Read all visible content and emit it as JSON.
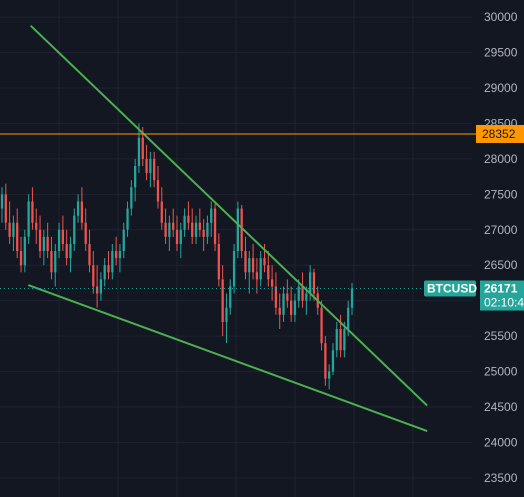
{
  "colors": {
    "background": "#131722",
    "grid": "#1f2330",
    "up": "#26a69a",
    "down": "#ef5350",
    "trendline": "#4caf50",
    "resistance": "#ff9800",
    "axis_text": "#b2b5be",
    "price_line": "#26a69a"
  },
  "chart_data": {
    "type": "candlestick",
    "symbol": "BTCUSD",
    "y_axis": {
      "ticks": [
        23500,
        24000,
        24500,
        25000,
        25500,
        26000,
        26500,
        27000,
        27500,
        28000,
        28500,
        29000,
        29500,
        30000
      ],
      "ylim": [
        23300,
        30200
      ],
      "side": "right"
    },
    "grid": true,
    "horizontal_level": {
      "price": 28352,
      "label": "28352",
      "color": "#ff9800"
    },
    "current_price": {
      "value": 26171,
      "symbol_label": "BTCUSD",
      "price_label": "26171",
      "countdown": "02:10:4"
    },
    "trendlines": [
      {
        "name": "descending-resistance",
        "start": [
          0.065,
          29880
        ],
        "end": [
          0.905,
          24520
        ]
      },
      {
        "name": "descending-support",
        "start": [
          0.06,
          26220
        ],
        "end": [
          0.905,
          24160
        ]
      }
    ],
    "candles": [
      [
        27300,
        27600,
        27100,
        27500
      ],
      [
        27500,
        27650,
        27000,
        27100
      ],
      [
        27100,
        27400,
        26800,
        26900
      ],
      [
        26900,
        27200,
        26700,
        27100
      ],
      [
        27100,
        27300,
        26600,
        26700
      ],
      [
        26700,
        26900,
        26400,
        26500
      ],
      [
        26500,
        27000,
        26400,
        26900
      ],
      [
        26900,
        27500,
        26800,
        27400
      ],
      [
        27400,
        27600,
        27000,
        27100
      ],
      [
        27100,
        27300,
        26800,
        27000
      ],
      [
        27000,
        27200,
        26600,
        26700
      ],
      [
        26700,
        27000,
        26500,
        26900
      ],
      [
        26900,
        27100,
        26600,
        26700
      ],
      [
        26700,
        26900,
        26300,
        26400
      ],
      [
        26400,
        26800,
        26200,
        26700
      ],
      [
        26700,
        27100,
        26600,
        27000
      ],
      [
        27000,
        27200,
        26700,
        26800
      ],
      [
        26800,
        27000,
        26500,
        26600
      ],
      [
        26600,
        26900,
        26400,
        26800
      ],
      [
        26800,
        27300,
        26700,
        27200
      ],
      [
        27200,
        27500,
        27100,
        27400
      ],
      [
        27400,
        27600,
        27000,
        27100
      ],
      [
        27100,
        27300,
        26700,
        26800
      ],
      [
        26800,
        27000,
        26400,
        26500
      ],
      [
        26500,
        26700,
        26100,
        26200
      ],
      [
        26200,
        26500,
        25900,
        26100
      ],
      [
        26100,
        26400,
        26000,
        26300
      ],
      [
        26300,
        26600,
        26200,
        26500
      ],
      [
        26500,
        26700,
        26300,
        26400
      ],
      [
        26400,
        26800,
        26300,
        26700
      ],
      [
        26700,
        26900,
        26500,
        26600
      ],
      [
        26600,
        26800,
        26400,
        26700
      ],
      [
        26700,
        27100,
        26600,
        27000
      ],
      [
        27000,
        27400,
        26900,
        27300
      ],
      [
        27300,
        27700,
        27200,
        27600
      ],
      [
        27600,
        28000,
        27400,
        27900
      ],
      [
        27900,
        28500,
        27800,
        28300
      ],
      [
        28300,
        28450,
        27900,
        28000
      ],
      [
        28000,
        28200,
        27700,
        27800
      ],
      [
        27800,
        28100,
        27600,
        28000
      ],
      [
        28000,
        28100,
        27600,
        27700
      ],
      [
        27700,
        27900,
        27300,
        27400
      ],
      [
        27400,
        27600,
        27000,
        27100
      ],
      [
        27100,
        27300,
        26800,
        26900
      ],
      [
        26900,
        27200,
        26700,
        27100
      ],
      [
        27100,
        27300,
        26900,
        27000
      ],
      [
        27000,
        27200,
        26700,
        26800
      ],
      [
        26800,
        27100,
        26600,
        27000
      ],
      [
        27000,
        27300,
        26900,
        27200
      ],
      [
        27200,
        27400,
        27000,
        27100
      ],
      [
        27100,
        27300,
        26800,
        26900
      ],
      [
        26900,
        27200,
        26800,
        27100
      ],
      [
        27100,
        27300,
        26900,
        27000
      ],
      [
        27000,
        27150,
        26700,
        26900
      ],
      [
        26900,
        27200,
        26800,
        27100
      ],
      [
        27100,
        27400,
        26900,
        27300
      ],
      [
        27300,
        27400,
        26700,
        26800
      ],
      [
        26800,
        26950,
        26200,
        26300
      ],
      [
        26300,
        26500,
        25500,
        25700
      ],
      [
        25700,
        26100,
        25400,
        25900
      ],
      [
        25900,
        26300,
        25800,
        26200
      ],
      [
        26200,
        26800,
        26100,
        26700
      ],
      [
        26700,
        27400,
        26600,
        27300
      ],
      [
        27300,
        27350,
        26600,
        26700
      ],
      [
        26700,
        26900,
        26300,
        26400
      ],
      [
        26400,
        26700,
        26100,
        26600
      ],
      [
        26600,
        26800,
        26300,
        26400
      ],
      [
        26400,
        26600,
        26100,
        26300
      ],
      [
        26300,
        26700,
        26200,
        26600
      ],
      [
        26600,
        26800,
        26400,
        26500
      ],
      [
        26500,
        26700,
        26200,
        26300
      ],
      [
        26300,
        26500,
        26000,
        26200
      ],
      [
        26200,
        26400,
        25800,
        25900
      ],
      [
        25900,
        26100,
        25600,
        25800
      ],
      [
        25800,
        26200,
        25700,
        26100
      ],
      [
        26100,
        26300,
        25900,
        26000
      ],
      [
        26000,
        26200,
        25700,
        25800
      ],
      [
        25800,
        26100,
        25700,
        26000
      ],
      [
        26000,
        26300,
        25900,
        26200
      ],
      [
        26200,
        26400,
        25900,
        26000
      ],
      [
        26000,
        26200,
        25800,
        26100
      ],
      [
        26100,
        26500,
        26000,
        26400
      ],
      [
        26400,
        26450,
        26000,
        26100
      ],
      [
        26100,
        26200,
        25800,
        25900
      ],
      [
        25900,
        26000,
        25300,
        25400
      ],
      [
        25400,
        25500,
        24800,
        24900
      ],
      [
        24900,
        25100,
        24750,
        25000
      ],
      [
        25000,
        25400,
        24950,
        25300
      ],
      [
        25300,
        25700,
        25200,
        25600
      ],
      [
        25600,
        25800,
        25200,
        25300
      ],
      [
        25300,
        25700,
        25200,
        25600
      ],
      [
        25600,
        26000,
        25500,
        25900
      ],
      [
        25900,
        26250,
        25800,
        26171
      ]
    ]
  }
}
